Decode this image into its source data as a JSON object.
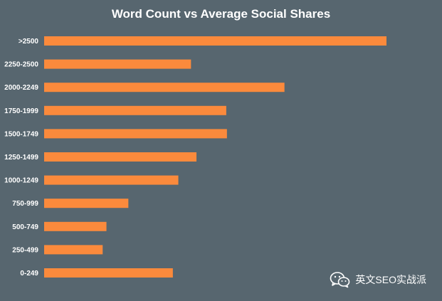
{
  "chart_data": {
    "type": "bar",
    "orientation": "horizontal",
    "title": "Word Count vs Average Social Shares",
    "xlabel": "",
    "ylabel": "",
    "categories": [
      ">2500",
      "2250-2500",
      "2000-2249",
      "1750-1999",
      "1500-1749",
      "1250-1499",
      "1000-1249",
      "750-999",
      "500-749",
      "250-499",
      "0-249"
    ],
    "values": [
      100,
      42.9,
      70.2,
      53.2,
      53.4,
      44.5,
      39.2,
      24.6,
      18.2,
      17.1,
      37.6
    ],
    "xlim": [
      0,
      100
    ],
    "grid": false,
    "legend": "none",
    "colors": {
      "bar": "#fb8a3c",
      "background": "#57666f",
      "text": "#ffffff"
    }
  },
  "watermark": {
    "label": "英文SEO实战派",
    "icon": "wechat-logo-icon"
  }
}
